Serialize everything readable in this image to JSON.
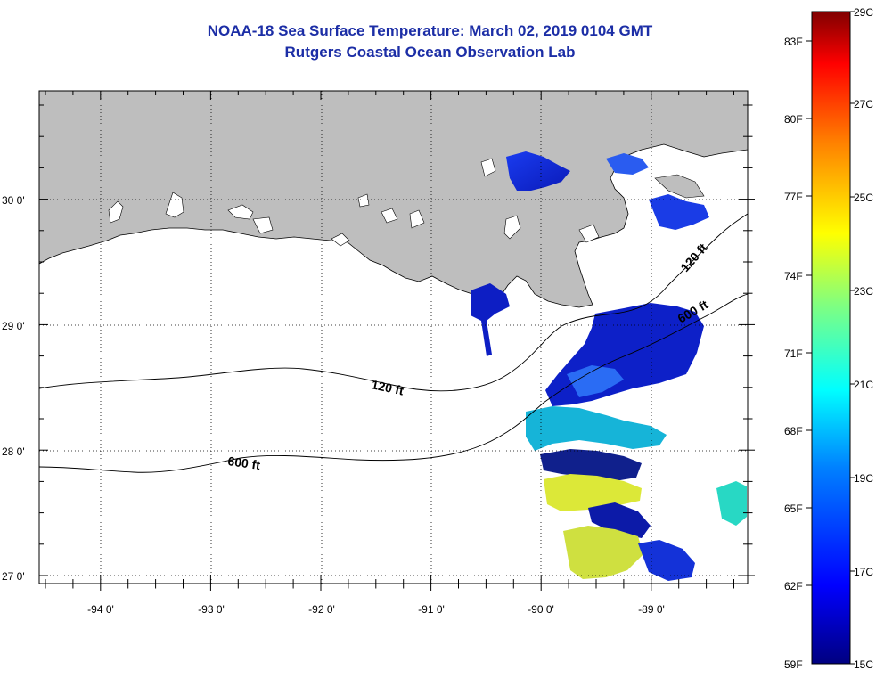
{
  "title": {
    "line1": "NOAA-18 Sea Surface Temperature:  March 02, 2019 0104 GMT",
    "line2": "Rutgers Coastal Ocean Observation Lab"
  },
  "map": {
    "lon_labels": [
      "-94 0'",
      "-93 0'",
      "-92 0'",
      "-91 0'",
      "-90 0'",
      "-89 0'"
    ],
    "lat_labels": [
      "30 0'",
      "29 0'",
      "28 0'",
      "27 0'"
    ],
    "contour_labels": [
      "120 ft",
      "600 ft",
      "120 ft",
      "600 ft"
    ]
  },
  "colorbar": {
    "fahrenheit": [
      "83F",
      "80F",
      "77F",
      "74F",
      "71F",
      "68F",
      "65F",
      "62F",
      "59F"
    ],
    "celsius": [
      "29C",
      "27C",
      "25C",
      "23C",
      "21C",
      "19C",
      "17C",
      "15C"
    ]
  },
  "colors": {
    "title": "#1c2ea6",
    "land": "#bebebe",
    "ocean": "#ffffff"
  }
}
